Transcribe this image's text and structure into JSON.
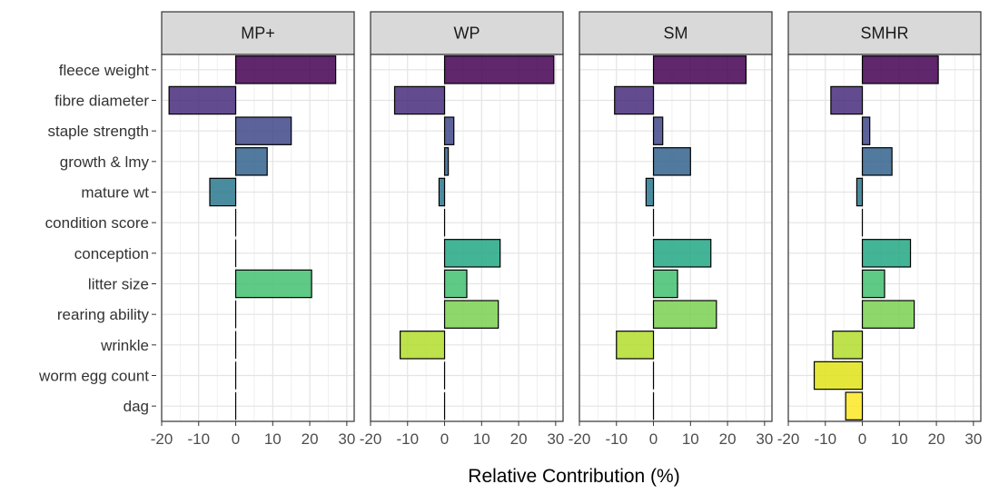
{
  "chart_data": {
    "type": "bar",
    "orientation": "horizontal",
    "xlabel": "Relative Contribution (%)",
    "ylabel": "",
    "xlim": [
      -20,
      32
    ],
    "xticks": [
      -20,
      -10,
      0,
      10,
      20,
      30
    ],
    "xtick_labels": [
      "-20",
      "-10",
      "0",
      "10",
      "20",
      "30"
    ],
    "grid": true,
    "legend": "none",
    "categories": [
      "fleece weight",
      "fibre diameter",
      "staple strength",
      "growth & lmy",
      "mature wt",
      "condition score",
      "conception",
      "litter size",
      "rearing ability",
      "wrinkle",
      "worm egg count",
      "dag"
    ],
    "category_colors": [
      "#440154",
      "#472c7a",
      "#3f4788",
      "#33638d",
      "#2a788e",
      "#21908d",
      "#22a884",
      "#43bf71",
      "#7ad151",
      "#b2dd2c",
      "#dfe318",
      "#fde725"
    ],
    "panels": [
      {
        "name": "MP+",
        "values": [
          27,
          -18,
          15,
          8.5,
          -7,
          0,
          0,
          20.5,
          0,
          0,
          0,
          0
        ]
      },
      {
        "name": "WP",
        "values": [
          29.5,
          -13.5,
          2.5,
          1,
          -1.5,
          0,
          15,
          6,
          14.5,
          -12,
          0,
          0
        ]
      },
      {
        "name": "SM",
        "values": [
          25,
          -10.5,
          2.5,
          10,
          -2,
          0,
          15.5,
          6.5,
          17,
          -10,
          0,
          0
        ]
      },
      {
        "name": "SMHR",
        "values": [
          20.5,
          -8.5,
          2,
          8,
          -1.5,
          0,
          13,
          6,
          14,
          -8,
          -13,
          -4.5
        ]
      }
    ]
  }
}
